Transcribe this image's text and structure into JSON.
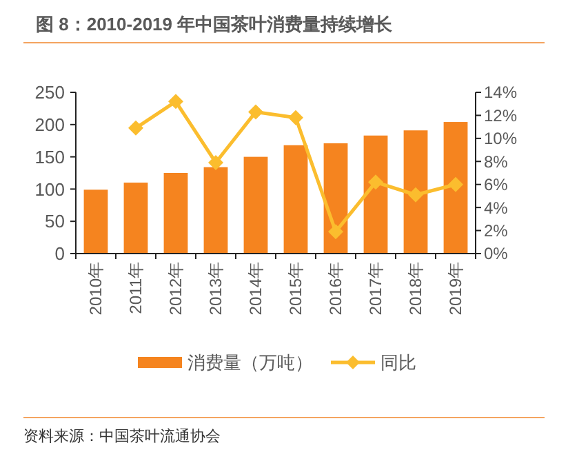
{
  "chart_data": {
    "type": "bar",
    "title": "图 8：2010-2019 年中国茶叶消费量持续增长",
    "categories": [
      "2010年",
      "2011年",
      "2012年",
      "2013年",
      "2014年",
      "2015年",
      "2016年",
      "2017年",
      "2018年",
      "2019年"
    ],
    "series": [
      {
        "name": "消费量（万吨）",
        "color": "#f5841f",
        "values": [
          99,
          110,
          125,
          134,
          150,
          168,
          171,
          183,
          191,
          204
        ]
      },
      {
        "name": "同比",
        "type": "line",
        "axis": "y2",
        "color": "#fbbd2e",
        "marker": "diamond",
        "values": [
          null,
          10.9,
          13.2,
          7.9,
          12.3,
          11.8,
          1.9,
          6.2,
          5.1,
          6.0
        ]
      }
    ],
    "ylim": [
      0,
      250
    ],
    "yticks": [
      0,
      50,
      100,
      150,
      200,
      250
    ],
    "y2lim": [
      0,
      14
    ],
    "y2ticks": [
      {
        "value": 0,
        "label": "0%"
      },
      {
        "value": 2,
        "label": "2%"
      },
      {
        "value": 4,
        "label": "4%"
      },
      {
        "value": 6,
        "label": "6%"
      },
      {
        "value": 8,
        "label": "8%"
      },
      {
        "value": 10,
        "label": "10%"
      },
      {
        "value": 12,
        "label": "12%"
      },
      {
        "value": 14,
        "label": "14%"
      }
    ],
    "legend": "bottom",
    "grid": false,
    "annotations": [
      "资料来源：中国茶叶流通协会"
    ]
  }
}
